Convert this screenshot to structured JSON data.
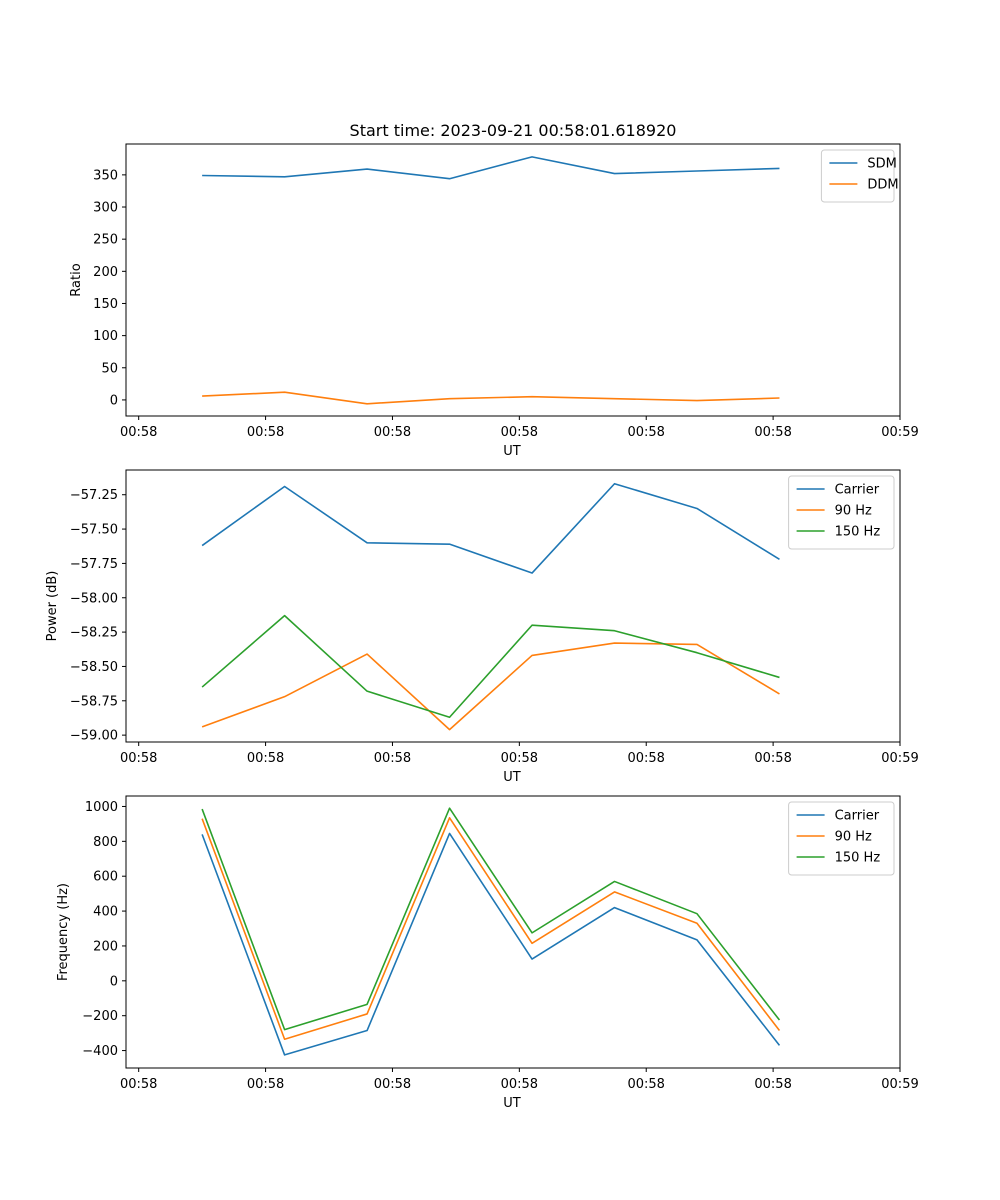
{
  "figure_title": "Start time: 2023-09-21 00:58:01.618920",
  "colors": {
    "blue": "#1f77b4",
    "orange": "#ff7f0e",
    "green": "#2ca02c"
  },
  "chart_data": [
    {
      "type": "line",
      "title": "Start time: 2023-09-21 00:58:01.618920",
      "xlabel": "UT",
      "ylabel": "Ratio",
      "x_ticks": [
        0,
        1,
        2,
        3,
        4,
        5,
        6
      ],
      "x_tick_labels": [
        "00:58",
        "00:58",
        "00:58",
        "00:58",
        "00:58",
        "00:58",
        "00:59"
      ],
      "xlim": [
        -0.1,
        6.0
      ],
      "x": [
        0.5,
        1.15,
        1.8,
        2.45,
        3.1,
        3.75,
        4.4,
        5.05
      ],
      "y_ticks": [
        0,
        50,
        100,
        150,
        200,
        250,
        300,
        350
      ],
      "y_tick_labels": [
        "0",
        "50",
        "100",
        "150",
        "200",
        "250",
        "300",
        "350"
      ],
      "ylim": [
        -25,
        398
      ],
      "legend_position": "top-right",
      "series": [
        {
          "name": "SDM",
          "color": "#1f77b4",
          "values": [
            349,
            347,
            359,
            344,
            378,
            352,
            356,
            360
          ]
        },
        {
          "name": "DDM",
          "color": "#ff7f0e",
          "values": [
            6,
            12,
            -6,
            2,
            5,
            2,
            -1,
            3
          ]
        }
      ]
    },
    {
      "type": "line",
      "title": "",
      "xlabel": "UT",
      "ylabel": "Power (dB)",
      "x_ticks": [
        0,
        1,
        2,
        3,
        4,
        5,
        6
      ],
      "x_tick_labels": [
        "00:58",
        "00:58",
        "00:58",
        "00:58",
        "00:58",
        "00:58",
        "00:59"
      ],
      "xlim": [
        -0.1,
        6.0
      ],
      "x": [
        0.5,
        1.15,
        1.8,
        2.45,
        3.1,
        3.75,
        4.4,
        5.05
      ],
      "y_ticks": [
        -59.0,
        -58.75,
        -58.5,
        -58.25,
        -58.0,
        -57.75,
        -57.5,
        -57.25
      ],
      "y_tick_labels": [
        "−59.00",
        "−58.75",
        "−58.50",
        "−58.25",
        "−58.00",
        "−57.75",
        "−57.50",
        "−57.25"
      ],
      "ylim": [
        -59.05,
        -57.07
      ],
      "legend_position": "top-right",
      "series": [
        {
          "name": "Carrier",
          "color": "#1f77b4",
          "values": [
            -57.62,
            -57.19,
            -57.6,
            -57.61,
            -57.82,
            -57.17,
            -57.35,
            -57.72
          ]
        },
        {
          "name": "90 Hz",
          "color": "#ff7f0e",
          "values": [
            -58.94,
            -58.72,
            -58.41,
            -58.96,
            -58.42,
            -58.33,
            -58.34,
            -58.7
          ]
        },
        {
          "name": "150 Hz",
          "color": "#2ca02c",
          "values": [
            -58.65,
            -58.13,
            -58.68,
            -58.87,
            -58.2,
            -58.24,
            -58.4,
            -58.58
          ]
        }
      ]
    },
    {
      "type": "line",
      "title": "",
      "xlabel": "UT",
      "ylabel": "Frequency (Hz)",
      "x_ticks": [
        0,
        1,
        2,
        3,
        4,
        5,
        6
      ],
      "x_tick_labels": [
        "00:58",
        "00:58",
        "00:58",
        "00:58",
        "00:58",
        "00:58",
        "00:59"
      ],
      "xlim": [
        -0.1,
        6.0
      ],
      "x": [
        0.5,
        1.15,
        1.8,
        2.45,
        3.1,
        3.75,
        4.4,
        5.05
      ],
      "y_ticks": [
        -400,
        -200,
        0,
        200,
        400,
        600,
        800,
        1000
      ],
      "y_tick_labels": [
        "−400",
        "−200",
        "0",
        "200",
        "400",
        "600",
        "800",
        "1000"
      ],
      "ylim": [
        -500,
        1060
      ],
      "legend_position": "top-right",
      "series": [
        {
          "name": "Carrier",
          "color": "#1f77b4",
          "values": [
            840,
            -425,
            -285,
            845,
            125,
            420,
            235,
            -370
          ]
        },
        {
          "name": "90 Hz",
          "color": "#ff7f0e",
          "values": [
            930,
            -335,
            -190,
            935,
            215,
            510,
            330,
            -285
          ]
        },
        {
          "name": "150 Hz",
          "color": "#2ca02c",
          "values": [
            985,
            -280,
            -135,
            990,
            275,
            570,
            385,
            -225
          ]
        }
      ]
    }
  ]
}
